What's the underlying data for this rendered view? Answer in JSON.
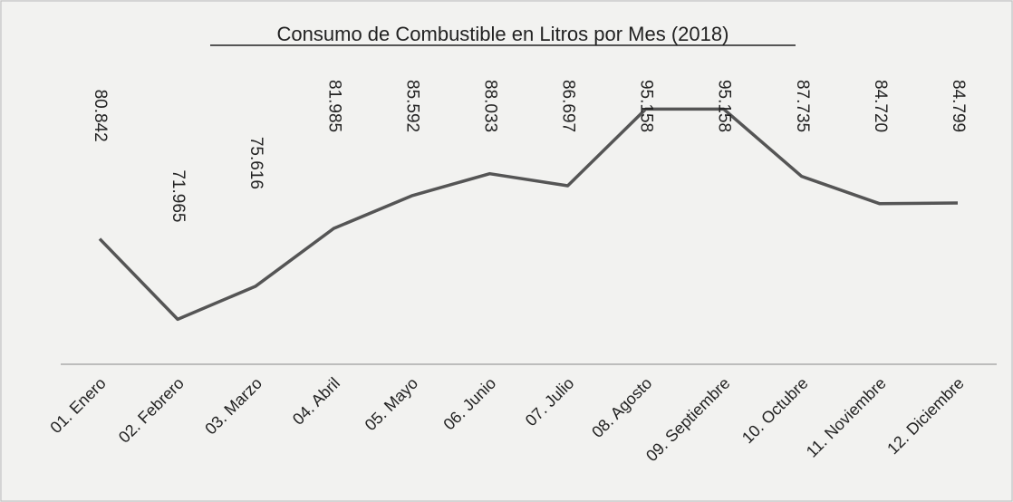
{
  "chart_data": {
    "type": "line",
    "title": "Consumo de Combustible en Litros por Mes (2018)",
    "categories": [
      "01. Enero",
      "02. Febrero",
      "03. Marzo",
      "04. Abril",
      "05. Mayo",
      "06. Junio",
      "07. Julio",
      "08. Agosto",
      "09. Septiembre",
      "10. Octubre",
      "11. Noviembre",
      "12. Diciembre"
    ],
    "values": [
      80.842,
      71.965,
      75.616,
      81.985,
      85.592,
      88.033,
      86.697,
      95.158,
      95.158,
      87.735,
      84.72,
      84.799
    ],
    "value_labels": [
      "80.842",
      "71.965",
      "75.616",
      "81.985",
      "85.592",
      "88.033",
      "86.697",
      "95.158",
      "95.158",
      "87.735",
      "84.720",
      "84.799"
    ],
    "color": "#555555",
    "ylim": [
      67,
      103
    ]
  }
}
